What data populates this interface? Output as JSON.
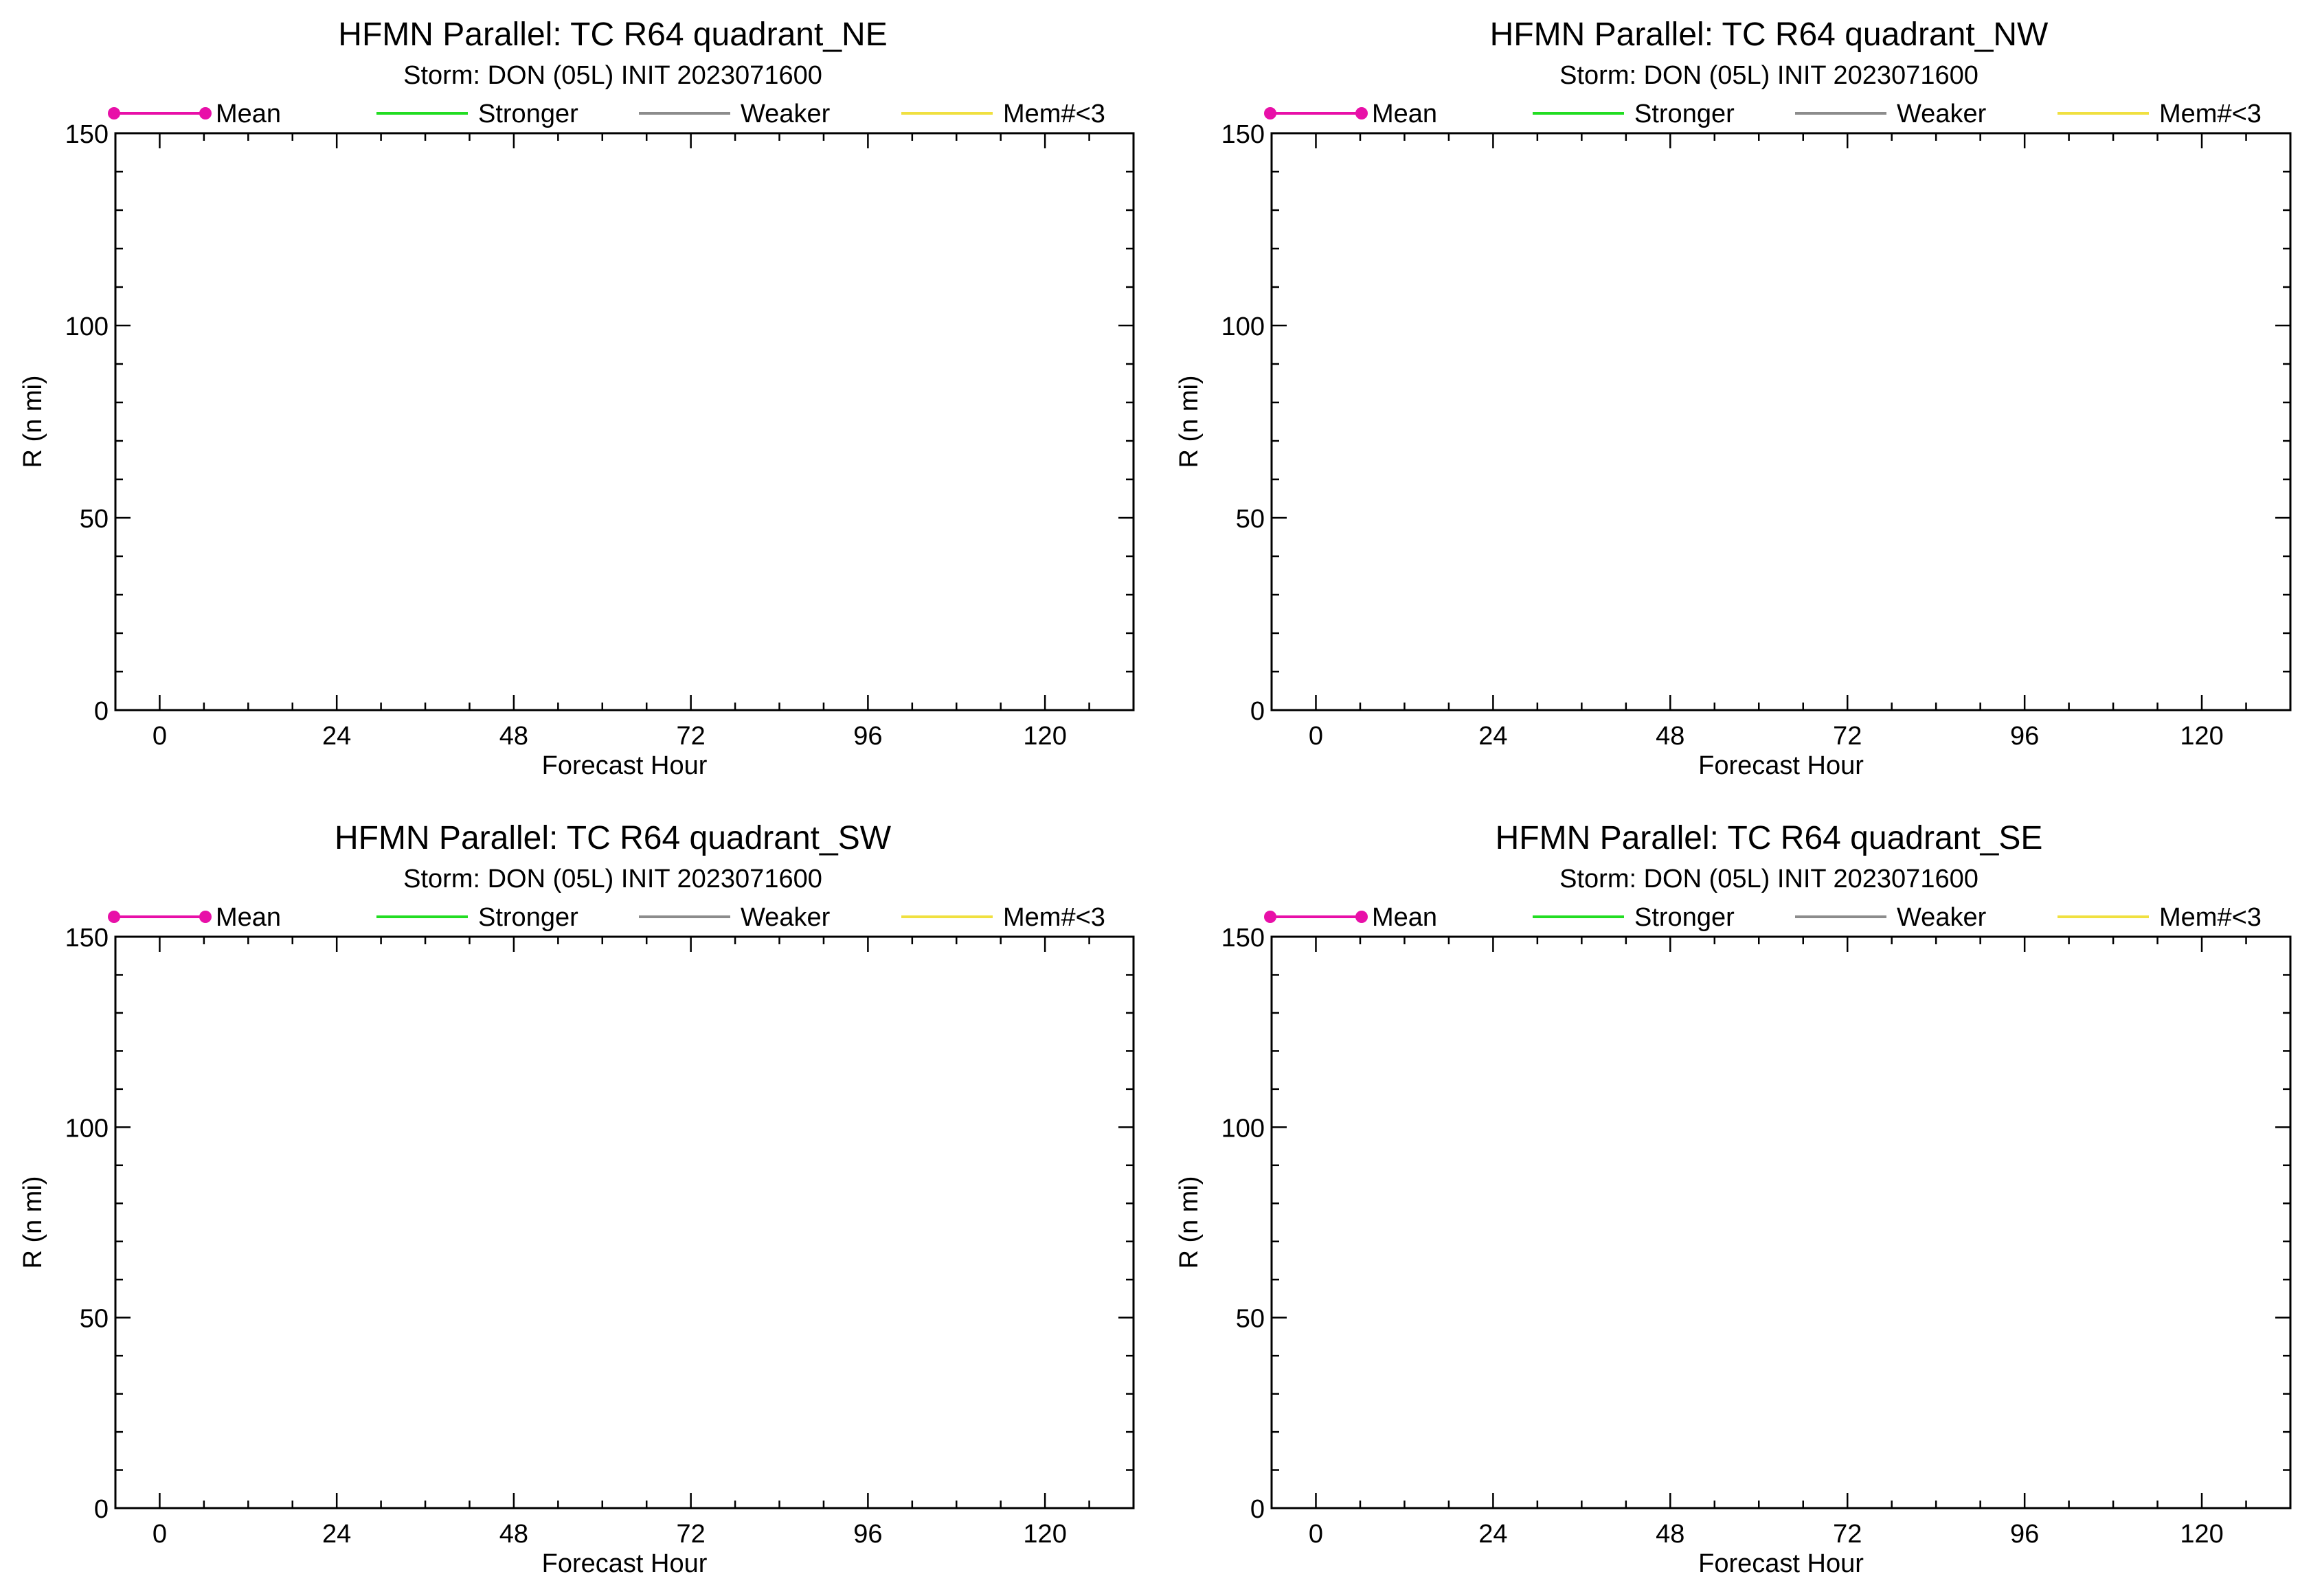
{
  "chart_data": [
    {
      "type": "line",
      "title": "HFMN Parallel: TC  R64 quadrant_NE",
      "subtitle": "Storm: DON (05L) INIT 2023071600",
      "xlabel": "Forecast Hour",
      "ylabel": "R (n mi)",
      "xlim": [
        -6,
        132
      ],
      "ylim": [
        0,
        150
      ],
      "xticks": [
        0,
        24,
        48,
        72,
        96,
        120
      ],
      "yticks": [
        0,
        50,
        100,
        150
      ],
      "grid": false,
      "legend_position": "top",
      "legend": [
        {
          "label": "Mean",
          "color": "#e810a8",
          "marker": "dot"
        },
        {
          "label": "Stronger",
          "color": "#22dd22",
          "marker": "none"
        },
        {
          "label": "Weaker",
          "color": "#8c8c8c",
          "marker": "none"
        },
        {
          "label": "Mem#<3",
          "color": "#f0e040",
          "marker": "none"
        }
      ],
      "series": []
    },
    {
      "type": "line",
      "title": "HFMN Parallel: TC  R64 quadrant_NW",
      "subtitle": "Storm: DON (05L) INIT 2023071600",
      "xlabel": "Forecast Hour",
      "ylabel": "R (n mi)",
      "xlim": [
        -6,
        132
      ],
      "ylim": [
        0,
        150
      ],
      "xticks": [
        0,
        24,
        48,
        72,
        96,
        120
      ],
      "yticks": [
        0,
        50,
        100,
        150
      ],
      "grid": false,
      "legend_position": "top",
      "legend": [
        {
          "label": "Mean",
          "color": "#e810a8",
          "marker": "dot"
        },
        {
          "label": "Stronger",
          "color": "#22dd22",
          "marker": "none"
        },
        {
          "label": "Weaker",
          "color": "#8c8c8c",
          "marker": "none"
        },
        {
          "label": "Mem#<3",
          "color": "#f0e040",
          "marker": "none"
        }
      ],
      "series": []
    },
    {
      "type": "line",
      "title": "HFMN Parallel: TC  R64 quadrant_SW",
      "subtitle": "Storm: DON (05L) INIT 2023071600",
      "xlabel": "Forecast Hour",
      "ylabel": "R (n mi)",
      "xlim": [
        -6,
        132
      ],
      "ylim": [
        0,
        150
      ],
      "xticks": [
        0,
        24,
        48,
        72,
        96,
        120
      ],
      "yticks": [
        0,
        50,
        100,
        150
      ],
      "grid": false,
      "legend_position": "top",
      "legend": [
        {
          "label": "Mean",
          "color": "#e810a8",
          "marker": "dot"
        },
        {
          "label": "Stronger",
          "color": "#22dd22",
          "marker": "none"
        },
        {
          "label": "Weaker",
          "color": "#8c8c8c",
          "marker": "none"
        },
        {
          "label": "Mem#<3",
          "color": "#f0e040",
          "marker": "none"
        }
      ],
      "series": []
    },
    {
      "type": "line",
      "title": "HFMN Parallel: TC  R64 quadrant_SE",
      "subtitle": "Storm: DON (05L) INIT 2023071600",
      "xlabel": "Forecast Hour",
      "ylabel": "R (n mi)",
      "xlim": [
        -6,
        132
      ],
      "ylim": [
        0,
        150
      ],
      "xticks": [
        0,
        24,
        48,
        72,
        96,
        120
      ],
      "yticks": [
        0,
        50,
        100,
        150
      ],
      "grid": false,
      "legend_position": "top",
      "legend": [
        {
          "label": "Mean",
          "color": "#e810a8",
          "marker": "dot"
        },
        {
          "label": "Stronger",
          "color": "#22dd22",
          "marker": "none"
        },
        {
          "label": "Weaker",
          "color": "#8c8c8c",
          "marker": "none"
        },
        {
          "label": "Mem#<3",
          "color": "#f0e040",
          "marker": "none"
        }
      ],
      "series": []
    }
  ]
}
